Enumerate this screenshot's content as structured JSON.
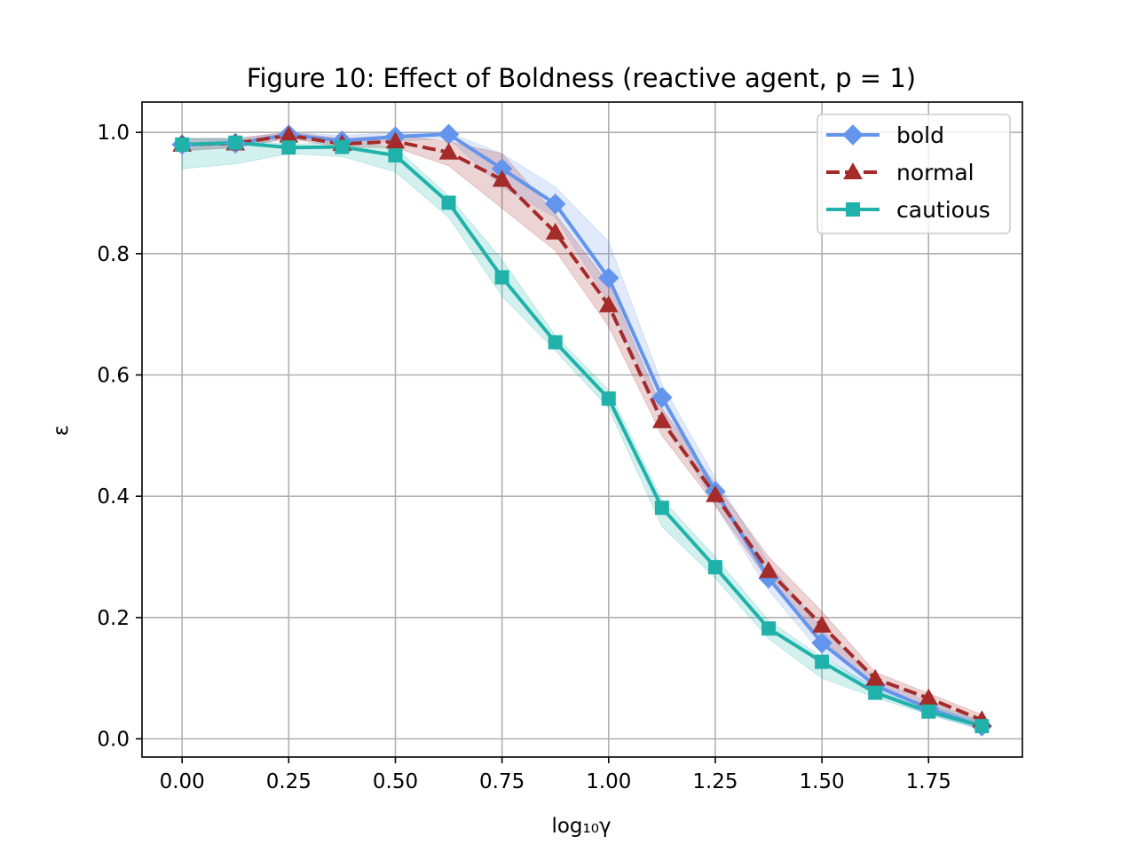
{
  "chart_data": {
    "type": "line",
    "title": "Figure 10: Effect of Boldness (reactive agent, p = 1)",
    "xlabel": "log₁₀γ",
    "ylabel": "ε",
    "xlim": [
      -0.094,
      1.97
    ],
    "ylim": [
      -0.03,
      1.05
    ],
    "xticks": [
      0.0,
      0.25,
      0.5,
      0.75,
      1.0,
      1.25,
      1.5,
      1.75
    ],
    "xtick_labels": [
      "0.00",
      "0.25",
      "0.50",
      "0.75",
      "1.00",
      "1.25",
      "1.50",
      "1.75"
    ],
    "yticks": [
      0.0,
      0.2,
      0.4,
      0.6,
      0.8,
      1.0
    ],
    "ytick_labels": [
      "0.0",
      "0.2",
      "0.4",
      "0.6",
      "0.8",
      "1.0"
    ],
    "grid": true,
    "legend": "top-right",
    "x": [
      0.0,
      0.125,
      0.25,
      0.375,
      0.5,
      0.625,
      0.75,
      0.875,
      1.0,
      1.125,
      1.25,
      1.375,
      1.5,
      1.625,
      1.75,
      1.875
    ],
    "series": [
      {
        "name": "bold",
        "color": "#6495ED",
        "marker": "diamond",
        "dash": "solid",
        "values": [
          0.98,
          0.982,
          0.996,
          0.986,
          0.993,
          0.997,
          0.94,
          0.882,
          0.76,
          0.563,
          0.408,
          0.265,
          0.158,
          0.088,
          0.05,
          0.021
        ],
        "lower": [
          0.97,
          0.975,
          0.99,
          0.98,
          0.985,
          0.99,
          0.91,
          0.86,
          0.72,
          0.535,
          0.385,
          0.245,
          0.14,
          0.075,
          0.04,
          0.015
        ],
        "upper": [
          0.99,
          0.99,
          1.0,
          0.995,
          1.0,
          1.0,
          0.965,
          0.91,
          0.82,
          0.585,
          0.43,
          0.29,
          0.18,
          0.1,
          0.06,
          0.03
        ]
      },
      {
        "name": "normal",
        "color": "#A52A2A",
        "marker": "triangle",
        "dash": "dashed",
        "values": [
          0.98,
          0.982,
          0.995,
          0.981,
          0.985,
          0.967,
          0.922,
          0.835,
          0.715,
          0.524,
          0.402,
          0.277,
          0.187,
          0.099,
          0.067,
          0.031
        ],
        "lower": [
          0.97,
          0.975,
          0.99,
          0.975,
          0.975,
          0.945,
          0.875,
          0.805,
          0.68,
          0.5,
          0.385,
          0.26,
          0.165,
          0.085,
          0.055,
          0.025
        ],
        "upper": [
          0.99,
          0.99,
          1.0,
          0.99,
          0.995,
          0.985,
          0.965,
          0.865,
          0.75,
          0.545,
          0.42,
          0.3,
          0.21,
          0.11,
          0.075,
          0.04
        ]
      },
      {
        "name": "cautious",
        "color": "#20B2AA",
        "marker": "square",
        "dash": "solid",
        "values": [
          0.98,
          0.983,
          0.975,
          0.976,
          0.962,
          0.884,
          0.761,
          0.654,
          0.561,
          0.381,
          0.283,
          0.182,
          0.127,
          0.076,
          0.045,
          0.021
        ],
        "lower": [
          0.94,
          0.948,
          0.965,
          0.96,
          0.935,
          0.86,
          0.73,
          0.64,
          0.545,
          0.35,
          0.265,
          0.165,
          0.1,
          0.068,
          0.04,
          0.016
        ],
        "upper": [
          0.99,
          0.99,
          0.98,
          0.985,
          0.975,
          0.895,
          0.79,
          0.665,
          0.575,
          0.395,
          0.3,
          0.195,
          0.135,
          0.085,
          0.055,
          0.028
        ]
      }
    ]
  }
}
